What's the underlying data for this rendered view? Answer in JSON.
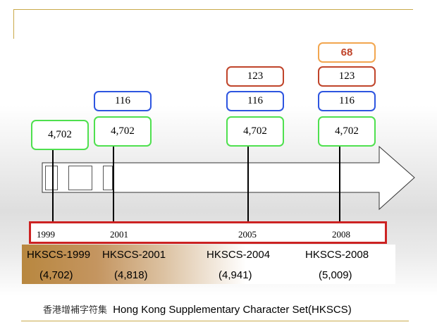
{
  "years": [
    "1999",
    "2001",
    "2005",
    "2008"
  ],
  "columns": [
    {
      "year": "1999",
      "stack": [
        {
          "value": "4,702",
          "color": "green"
        }
      ]
    },
    {
      "year": "2001",
      "stack": [
        {
          "value": "4,702",
          "color": "green"
        },
        {
          "value": "116",
          "color": "blue"
        }
      ]
    },
    {
      "year": "2005",
      "stack": [
        {
          "value": "4,702",
          "color": "green"
        },
        {
          "value": "116",
          "color": "blue"
        },
        {
          "value": "123",
          "color": "red"
        }
      ]
    },
    {
      "year": "2008",
      "stack": [
        {
          "value": "4,702",
          "color": "green"
        },
        {
          "value": "116",
          "color": "blue"
        },
        {
          "value": "123",
          "color": "red"
        },
        {
          "value": "68",
          "color": "orange"
        }
      ]
    }
  ],
  "versions": [
    {
      "name": "HKSCS-1999",
      "count": "(4,702)"
    },
    {
      "name": "HKSCS-2001",
      "count": "(4,818)"
    },
    {
      "name": "HKSCS-2004",
      "count": "(4,941)"
    },
    {
      "name": "HKSCS-2008",
      "count": "(5,009)"
    }
  ],
  "caption": {
    "chinese": "香港增補字符集",
    "english": "Hong Kong Supplementary Character Set(HKSCS)"
  },
  "colors": {
    "green": "#4fe04f",
    "blue": "#2d55e0",
    "red": "#c0442a",
    "orange": "#f2a64f",
    "year_bar": "#cc2222",
    "frame": "#c9a94a"
  }
}
